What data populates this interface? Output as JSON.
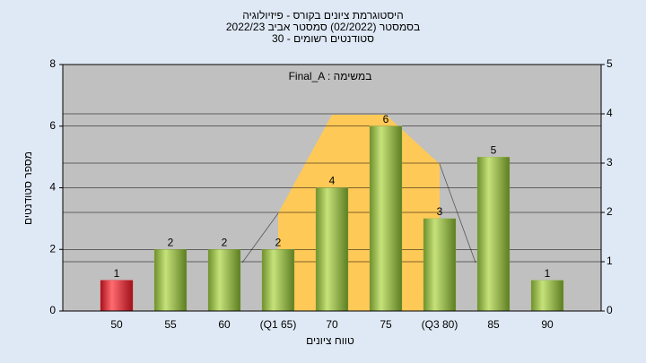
{
  "chart_data": {
    "type": "bar",
    "title": "היסטוגרמת ציונים בקורס - פיזיולוגיה",
    "subtitle": "בסמסטר  (02/2022)  סמסטר אביב 2022/23",
    "subtitle2": "סטודנטים רשומים - 30",
    "annotation": "Final_A : במשימה",
    "x_label": "טווח ציונים",
    "y_label": "מספר סטודנטים",
    "categories": [
      "50",
      "55",
      "60",
      "(Q1 65)",
      "70",
      "75",
      "(Q3 80)",
      "85",
      "90"
    ],
    "values": [
      1,
      2,
      2,
      2,
      4,
      6,
      3,
      5,
      1
    ],
    "colors": [
      "#e0202a",
      "#8fb848",
      "#8fb848",
      "#8fb848",
      "#8fb848",
      "#8fb848",
      "#8fb848",
      "#8fb848",
      "#8fb848"
    ],
    "ylim": [
      0,
      8
    ],
    "yticks": [
      0,
      2,
      4,
      6,
      8
    ],
    "y2lim": [
      0,
      5
    ],
    "y2ticks": [
      0,
      1,
      2,
      3,
      4,
      5
    ],
    "grid": true
  }
}
